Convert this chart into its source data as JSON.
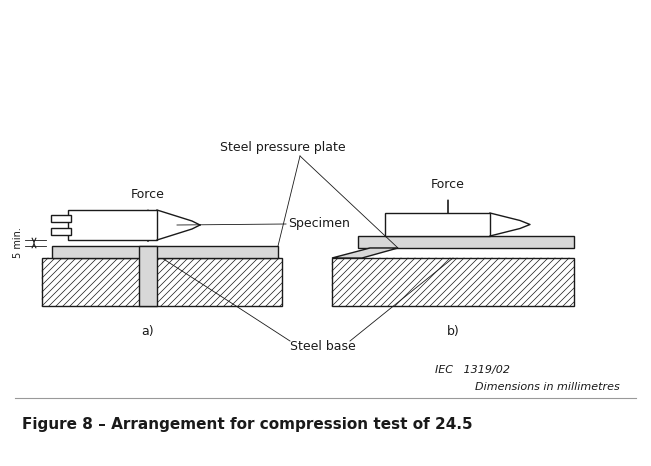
{
  "title": "Figure 8 – Arrangement for compression test of 24.5",
  "label_force_a": "Force",
  "label_force_b": "Force",
  "label_pressure_plate": "Steel pressure plate",
  "label_specimen": "Specimen",
  "label_steel_base": "Steel base",
  "label_a": "a)",
  "label_b": "b)",
  "label_5min": "5 min.",
  "label_iec": "IEC   1319/02",
  "label_dim": "Dimensions in millimetres",
  "bg_color": "#ffffff",
  "line_color": "#1a1a1a",
  "gray_fill": "#d8d8d8",
  "white_fill": "#ffffff"
}
